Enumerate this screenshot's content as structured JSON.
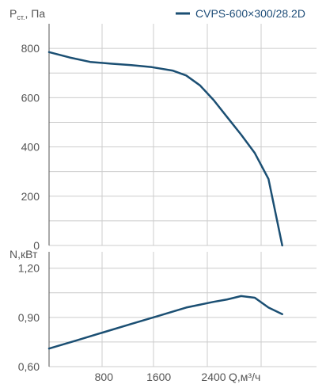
{
  "legend": {
    "label": "CVPS-600×300/28.2D"
  },
  "colors": {
    "series": "#1b4f73",
    "grid": "#cccccc",
    "axis": "#555555",
    "text": "#555555"
  },
  "chart_data": [
    {
      "type": "line",
      "title": "",
      "ylabel_main": "P",
      "ylabel_sub": "ст.",
      "ylabel_unit": "Па",
      "xlabel": "",
      "xlim": [
        0,
        3900
      ],
      "ylim": [
        0,
        900
      ],
      "y_ticks": [
        "0",
        "200",
        "400",
        "600",
        "800"
      ],
      "y_tick_values": [
        0,
        200,
        400,
        600,
        800
      ],
      "x_ticks": [],
      "grid": true,
      "legend_position": "top-right",
      "series": [
        {
          "name": "CVPS-600×300/28.2D",
          "x": [
            0,
            300,
            600,
            900,
            1200,
            1500,
            1800,
            2000,
            2200,
            2400,
            2600,
            2800,
            3000,
            3200,
            3400
          ],
          "y": [
            785,
            763,
            745,
            738,
            732,
            724,
            710,
            690,
            650,
            590,
            520,
            450,
            375,
            270,
            0
          ]
        }
      ]
    },
    {
      "type": "line",
      "title": "",
      "ylabel": "N,кВт",
      "xlabel": "Q,м³/ч",
      "xlim": [
        0,
        3900
      ],
      "ylim": [
        0.6,
        1.3
      ],
      "y_ticks": [
        "0,60",
        "0,90",
        "1,20"
      ],
      "y_tick_values": [
        0.6,
        0.9,
        1.2
      ],
      "x_ticks": [
        "800",
        "1600",
        "2400"
      ],
      "x_tick_values": [
        800,
        1600,
        2400
      ],
      "grid": true,
      "series": [
        {
          "name": "CVPS-600×300/28.2D",
          "x": [
            0,
            400,
            800,
            1200,
            1600,
            2000,
            2400,
            2600,
            2800,
            3000,
            3200,
            3400
          ],
          "y": [
            0.71,
            0.76,
            0.81,
            0.86,
            0.91,
            0.96,
            0.995,
            1.01,
            1.03,
            1.02,
            0.96,
            0.92
          ]
        }
      ]
    }
  ]
}
